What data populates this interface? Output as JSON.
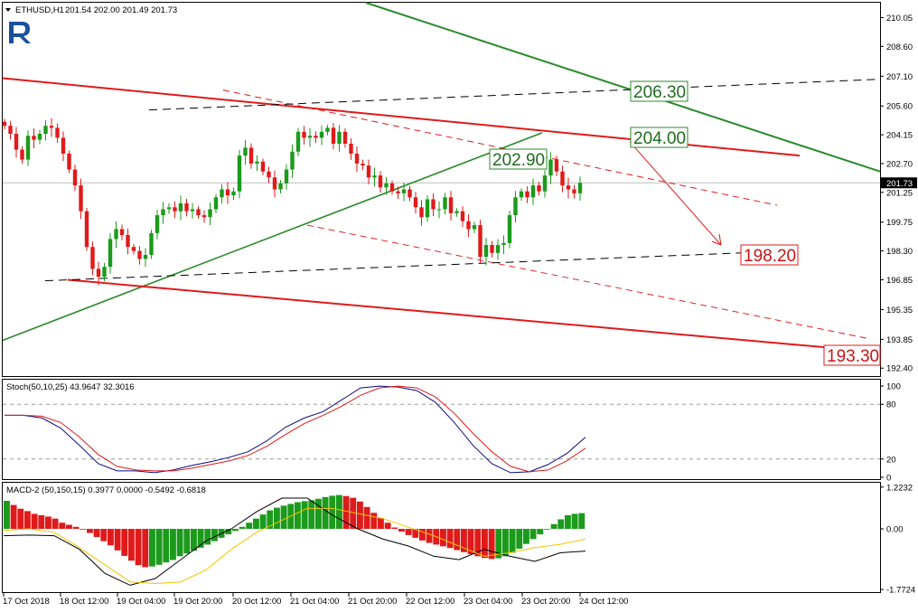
{
  "header": {
    "symbol_label": "ETHUSD,H1",
    "ohlc_label": "201.54 202.00 201.49 201.73"
  },
  "colors": {
    "bull": "#1b9a1b",
    "bear": "#e01a1a",
    "green_line": "#2a8a2a",
    "red_line": "#e01a1a",
    "stoch_main": "#0b0b80",
    "stoch_signal": "#e01a1a",
    "macd_signal": "#f2c400",
    "logo": "#1a4f9c"
  },
  "chart_data": [
    {
      "type": "candlestick",
      "title": "ETHUSD,H1",
      "ylim": [
        192.0,
        210.8
      ],
      "y_ticks": [
        "210.05",
        "208.60",
        "207.10",
        "205.60",
        "204.15",
        "202.70",
        "201.25",
        "199.75",
        "198.30",
        "196.85",
        "195.35",
        "193.85",
        "192.40"
      ],
      "x_ticks": [
        "17 Oct 2018",
        "18 Oct 12:00",
        "19 Oct 04:00",
        "19 Oct 20:00",
        "20 Oct 12:00",
        "21 Oct 04:00",
        "21 Oct 20:00",
        "22 Oct 12:00",
        "23 Oct 04:00",
        "23 Oct 20:00",
        "24 Oct 12:00"
      ],
      "last_price": "201.73",
      "closes": [
        204.6,
        204.2,
        203.4,
        202.9,
        204.1,
        203.9,
        204.2,
        204.6,
        204.5,
        204.0,
        203.2,
        202.4,
        201.6,
        200.3,
        198.5,
        197.4,
        197.0,
        197.5,
        198.9,
        199.4,
        199.1,
        198.5,
        198.3,
        197.9,
        198.1,
        199.2,
        200.1,
        200.4,
        200.5,
        200.3,
        200.7,
        200.3,
        200.4,
        200.1,
        200.0,
        200.4,
        201.0,
        201.4,
        201.1,
        201.3,
        203.1,
        203.5,
        202.7,
        202.8,
        202.3,
        202.0,
        201.4,
        201.7,
        202.4,
        203.3,
        204.3,
        204.0,
        204.1,
        204.0,
        204.3,
        204.5,
        203.7,
        204.3,
        203.7,
        203.2,
        202.7,
        202.6,
        202.0,
        202.1,
        201.5,
        201.7,
        201.3,
        201.2,
        201.4,
        201.0,
        200.5,
        200.0,
        200.9,
        200.4,
        200.4,
        201.0,
        200.2,
        200.3,
        199.8,
        199.4,
        199.6,
        198.0,
        198.6,
        198.2,
        198.6,
        198.7,
        200.1,
        201.0,
        201.3,
        201.0,
        201.6,
        201.3,
        202.1,
        202.9,
        202.3,
        201.6,
        201.4,
        201.2,
        201.73
      ],
      "levels": [
        {
          "label": "206.30",
          "price": 206.3,
          "color": "green"
        },
        {
          "label": "204.00",
          "price": 204.0,
          "color": "green"
        },
        {
          "label": "202.90",
          "price": 202.9,
          "color": "green"
        },
        {
          "label": "198.20",
          "price": 198.2,
          "color": "red"
        },
        {
          "label": "193.30",
          "price": 193.3,
          "color": "red"
        }
      ]
    },
    {
      "type": "line",
      "title": "Stoch(50,10,25) 43.9647 32.3016",
      "ylim": [
        -2,
        107
      ],
      "y_ticks": [
        "100",
        "80",
        "20",
        "0"
      ],
      "levels": [
        80,
        20
      ],
      "series": [
        {
          "role": "main",
          "values": [
            68,
            68,
            65,
            54,
            35,
            15,
            7,
            7,
            5,
            8,
            13,
            17,
            22,
            28,
            40,
            55,
            65,
            72,
            85,
            98,
            100,
            99,
            95,
            82,
            60,
            35,
            15,
            5,
            6,
            14,
            26,
            44
          ]
        },
        {
          "role": "signal",
          "values": [
            68,
            68,
            67,
            60,
            44,
            25,
            12,
            8,
            7,
            7,
            10,
            14,
            18,
            24,
            34,
            47,
            59,
            68,
            78,
            90,
            98,
            100,
            98,
            88,
            70,
            48,
            28,
            12,
            6,
            8,
            18,
            32
          ]
        }
      ]
    },
    {
      "type": "bar",
      "title": "MACD-2 (50,150,15) 0.3977 0.0000 -0.5492 -0.6818",
      "ylim": [
        -1.85,
        1.35
      ],
      "y_ticks": [
        "1.2232",
        "0.00",
        "-1.7724"
      ],
      "histogram": [
        0.82,
        0.7,
        0.59,
        0.52,
        0.44,
        0.4,
        0.36,
        0.3,
        0.18,
        0.12,
        0.06,
        -0.02,
        -0.12,
        -0.24,
        -0.36,
        -0.48,
        -0.63,
        -0.79,
        -0.93,
        -1.06,
        -1.12,
        -1.1,
        -1.05,
        -0.98,
        -0.91,
        -0.8,
        -0.72,
        -0.64,
        -0.55,
        -0.46,
        -0.36,
        -0.26,
        -0.16,
        -0.06,
        0.06,
        0.18,
        0.3,
        0.42,
        0.54,
        0.62,
        0.68,
        0.73,
        0.78,
        0.81,
        0.84,
        0.88,
        0.93,
        0.97,
        0.99,
        0.96,
        0.91,
        0.8,
        0.64,
        0.47,
        0.32,
        0.18,
        0.04,
        -0.08,
        -0.18,
        -0.26,
        -0.34,
        -0.41,
        -0.46,
        -0.51,
        -0.56,
        -0.62,
        -0.68,
        -0.74,
        -0.8,
        -0.85,
        -0.88,
        -0.86,
        -0.8,
        -0.7,
        -0.58,
        -0.44,
        -0.3,
        -0.16,
        -0.02,
        0.14,
        0.28,
        0.4,
        0.44,
        0.46
      ],
      "series": [
        {
          "role": "macd",
          "values": [
            -0.2,
            -0.18,
            -0.2,
            -0.6,
            -1.3,
            -1.65,
            -1.45,
            -0.9,
            -0.35,
            0.0,
            0.5,
            0.9,
            0.9,
            0.4,
            0.0,
            -0.3,
            -0.5,
            -0.8,
            -0.9,
            -0.6,
            -0.8,
            -0.95,
            -0.7,
            -0.65
          ]
        },
        {
          "role": "signal",
          "values": [
            -0.05,
            0.0,
            -0.1,
            -0.55,
            -1.05,
            -1.55,
            -1.6,
            -1.55,
            -1.2,
            -0.6,
            -0.1,
            0.25,
            0.6,
            0.6,
            0.45,
            0.3,
            0.05,
            -0.2,
            -0.5,
            -0.8,
            -0.7,
            -0.55,
            -0.45,
            -0.3
          ]
        }
      ]
    }
  ]
}
